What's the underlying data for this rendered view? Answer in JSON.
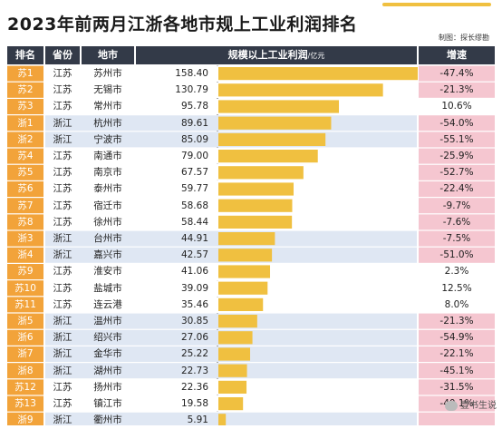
{
  "title": "2023年前两月江浙各地市规上工业利润排名",
  "credit": "制图：探长缪勘",
  "watermark": "壹书生说",
  "headers": {
    "rank": "排名",
    "province": "省份",
    "city": "地市",
    "profit": "规模以上工业利润",
    "unit": "/亿元",
    "growth": "增速"
  },
  "colors": {
    "header": "#333a48",
    "bar": "#f0c040",
    "rank": "#f2a33a",
    "pink": "#f5c6d0",
    "blue": "#dfe7f3"
  },
  "chart_data": {
    "type": "bar",
    "rows": [
      {
        "rank": "苏1",
        "province": "江苏",
        "city": "苏州市",
        "value": 158.4,
        "growth": "-47.4%"
      },
      {
        "rank": "苏2",
        "province": "江苏",
        "city": "无锡市",
        "value": 130.79,
        "growth": "-21.3%"
      },
      {
        "rank": "苏3",
        "province": "江苏",
        "city": "常州市",
        "value": 95.78,
        "growth": "10.6%"
      },
      {
        "rank": "浙1",
        "province": "浙江",
        "city": "杭州市",
        "value": 89.61,
        "growth": "-54.0%"
      },
      {
        "rank": "浙2",
        "province": "浙江",
        "city": "宁波市",
        "value": 85.09,
        "growth": "-55.1%"
      },
      {
        "rank": "苏4",
        "province": "江苏",
        "city": "南通市",
        "value": 79.0,
        "growth": "-25.9%"
      },
      {
        "rank": "苏5",
        "province": "江苏",
        "city": "南京市",
        "value": 67.57,
        "growth": "-52.7%"
      },
      {
        "rank": "苏6",
        "province": "江苏",
        "city": "泰州市",
        "value": 59.77,
        "growth": "-22.4%"
      },
      {
        "rank": "苏7",
        "province": "江苏",
        "city": "宿迁市",
        "value": 58.68,
        "growth": "-9.7%"
      },
      {
        "rank": "苏8",
        "province": "江苏",
        "city": "徐州市",
        "value": 58.44,
        "growth": "-7.6%"
      },
      {
        "rank": "浙3",
        "province": "浙江",
        "city": "台州市",
        "value": 44.91,
        "growth": "-7.5%"
      },
      {
        "rank": "浙4",
        "province": "浙江",
        "city": "嘉兴市",
        "value": 42.57,
        "growth": "-51.0%"
      },
      {
        "rank": "苏9",
        "province": "江苏",
        "city": "淮安市",
        "value": 41.06,
        "growth": "2.3%"
      },
      {
        "rank": "苏10",
        "province": "江苏",
        "city": "盐城市",
        "value": 39.09,
        "growth": "12.5%"
      },
      {
        "rank": "苏11",
        "province": "江苏",
        "city": "连云港",
        "value": 35.46,
        "growth": "8.0%"
      },
      {
        "rank": "浙5",
        "province": "浙江",
        "city": "温州市",
        "value": 30.85,
        "growth": "-21.3%"
      },
      {
        "rank": "浙6",
        "province": "浙江",
        "city": "绍兴市",
        "value": 27.06,
        "growth": "-54.9%"
      },
      {
        "rank": "浙7",
        "province": "浙江",
        "city": "金华市",
        "value": 25.22,
        "growth": "-22.1%"
      },
      {
        "rank": "浙8",
        "province": "浙江",
        "city": "湖州市",
        "value": 22.73,
        "growth": "-45.1%"
      },
      {
        "rank": "苏12",
        "province": "江苏",
        "city": "扬州市",
        "value": 22.36,
        "growth": "-31.5%"
      },
      {
        "rank": "苏13",
        "province": "江苏",
        "city": "镇江市",
        "value": 19.58,
        "growth": "-40.1%"
      },
      {
        "rank": "浙9",
        "province": "浙江",
        "city": "衢州市",
        "value": 5.91,
        "growth": ""
      }
    ]
  }
}
